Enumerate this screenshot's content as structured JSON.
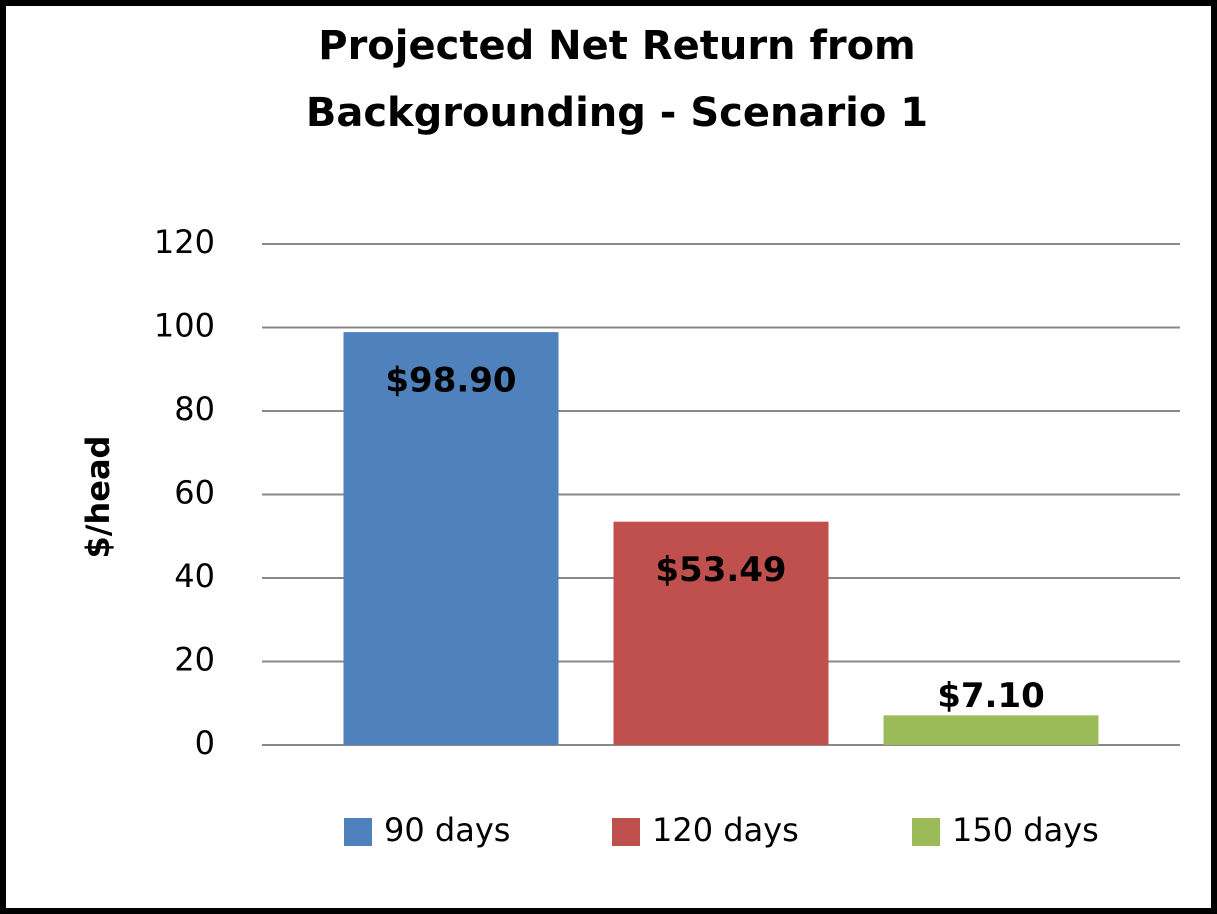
{
  "chart_data": {
    "type": "bar",
    "title": [
      "Projected Net Return from",
      "Backgrounding - Scenario 1"
    ],
    "ylabel": "$/head",
    "categories": [
      null
    ],
    "series": [
      {
        "name": "90 days",
        "color": "#4f81bd",
        "values": [
          98.9
        ],
        "value_labels": [
          "$98.90"
        ]
      },
      {
        "name": "120 days",
        "color": "#c0504d",
        "values": [
          53.49
        ],
        "value_labels": [
          "$53.49"
        ]
      },
      {
        "name": "150 days",
        "color": "#9bbb59",
        "values": [
          7.1
        ],
        "value_labels": [
          "$7.10"
        ]
      }
    ],
    "ylim": [
      0,
      120
    ],
    "yticks": [
      0,
      20,
      40,
      60,
      80,
      100,
      120
    ],
    "grid": true,
    "legend": "bottom"
  }
}
